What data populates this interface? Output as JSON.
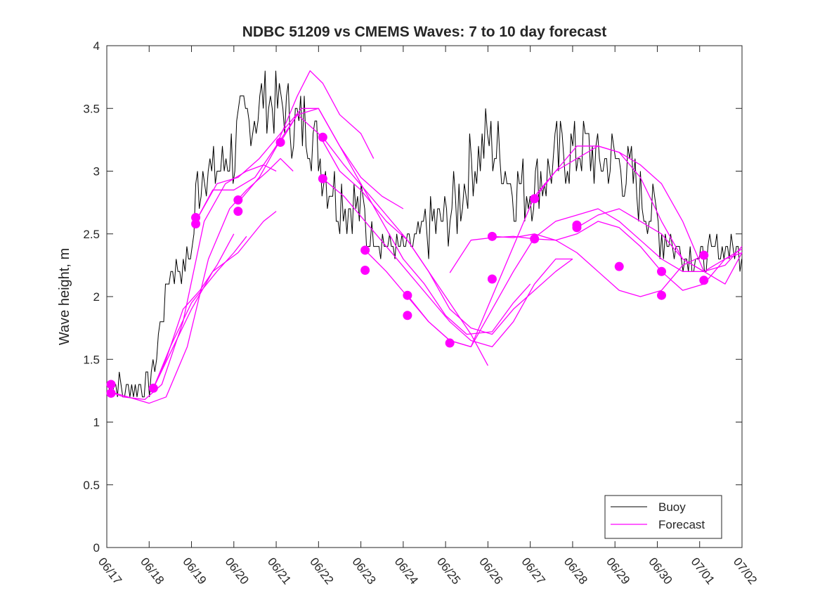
{
  "chart_data": {
    "type": "line",
    "title": "NDBC 51209 vs CMEMS Waves: 7 to 10 day forecast",
    "xlabel": "",
    "ylabel": "Wave height, m",
    "xlim": [
      "06/17",
      "07/02"
    ],
    "ylim": [
      0,
      4
    ],
    "x_ticks": [
      "06/17",
      "06/18",
      "06/19",
      "06/20",
      "06/21",
      "06/22",
      "06/23",
      "06/24",
      "06/25",
      "06/26",
      "06/27",
      "06/28",
      "06/29",
      "06/30",
      "07/01",
      "07/02"
    ],
    "y_ticks": [
      "0",
      "0.5",
      "1",
      "1.5",
      "2",
      "2.5",
      "3",
      "3.5",
      "4"
    ],
    "x_unit": "days since 06/17",
    "grid": false,
    "legend": {
      "position": "bottom-right",
      "entries": [
        "Buoy",
        "Forecast"
      ]
    },
    "colors": {
      "buoy": "#000000",
      "forecast": "#ff00ff",
      "axes": "#262626"
    },
    "series": [
      {
        "name": "Buoy",
        "style": "line",
        "x": [
          0.0,
          0.5,
          1.0,
          1.15,
          1.3,
          1.5,
          1.8,
          2.0,
          2.15,
          2.3,
          2.5,
          2.7,
          3.0,
          3.2,
          3.5,
          3.7,
          4.0,
          4.2,
          4.5,
          4.7,
          5.0,
          5.2,
          5.4,
          5.7,
          6.0,
          6.2,
          6.5,
          6.8,
          7.0,
          7.3,
          7.6,
          8.0,
          8.3,
          8.6,
          9.0,
          9.3,
          9.6,
          10.0,
          10.3,
          10.6,
          11.0,
          11.3,
          11.6,
          12.0,
          12.3,
          12.6,
          13.0,
          13.3,
          13.6,
          14.0,
          14.3,
          14.6,
          15.0
        ],
        "y": [
          1.3,
          1.25,
          1.3,
          1.5,
          1.85,
          2.2,
          2.2,
          2.35,
          2.9,
          3.1,
          2.95,
          3.05,
          3.15,
          3.35,
          3.45,
          3.6,
          3.55,
          3.5,
          3.35,
          3.4,
          3.2,
          2.95,
          2.85,
          2.75,
          2.7,
          2.5,
          2.45,
          2.4,
          2.4,
          2.45,
          2.55,
          2.6,
          2.75,
          3.05,
          3.25,
          3.1,
          2.9,
          2.85,
          2.95,
          3.1,
          3.15,
          3.2,
          3.05,
          3.1,
          3.0,
          2.8,
          2.6,
          2.45,
          2.35,
          2.3,
          2.35,
          2.4,
          2.35
        ]
      },
      {
        "name": "Forecast",
        "x": [
          0.0,
          0.4,
          0.9,
          1.3,
          1.8,
          2.3,
          2.8,
          3.3,
          3.7,
          4.0
        ],
        "y": [
          1.25,
          1.2,
          1.18,
          1.3,
          1.8,
          2.6,
          2.9,
          3.0,
          3.05,
          3.0
        ]
      },
      {
        "name": "",
        "x": [
          1.1,
          1.5,
          2.0,
          2.6,
          3.0,
          3.3
        ],
        "y": [
          1.27,
          1.6,
          1.95,
          2.2,
          2.35,
          2.48
        ]
      },
      {
        "name": "",
        "x": [
          1.1,
          1.5,
          2.0,
          2.5,
          3.1,
          3.7,
          4.0
        ],
        "y": [
          1.27,
          1.55,
          1.9,
          2.2,
          2.35,
          2.6,
          2.68
        ]
      },
      {
        "name": "",
        "x": [
          1.1,
          1.4,
          1.8,
          2.2,
          2.6,
          3.0
        ],
        "y": [
          1.27,
          1.5,
          1.9,
          2.05,
          2.25,
          2.5
        ]
      },
      {
        "name": "",
        "x": [
          0.0,
          0.5,
          1.0,
          1.4,
          1.9,
          2.4,
          2.9,
          3.3,
          3.8,
          4.1,
          4.4
        ],
        "y": [
          1.25,
          1.2,
          1.15,
          1.2,
          1.6,
          2.3,
          2.7,
          2.85,
          3.0,
          3.1,
          3.0
        ]
      },
      {
        "name": "",
        "x": [
          2.1,
          2.5,
          3.0,
          3.5,
          4.0,
          4.5,
          4.8,
          5.1,
          5.5,
          6.0,
          6.3
        ],
        "y": [
          2.6,
          2.85,
          2.85,
          2.95,
          3.2,
          3.6,
          3.8,
          3.7,
          3.45,
          3.3,
          3.1
        ]
      },
      {
        "name": "",
        "x": [
          2.1,
          2.6,
          3.1,
          3.6,
          4.1,
          4.6,
          5.0,
          5.5,
          6.0,
          6.5,
          7.0
        ],
        "y": [
          2.6,
          2.9,
          2.95,
          3.1,
          3.3,
          3.5,
          3.5,
          3.2,
          2.95,
          2.8,
          2.7
        ]
      },
      {
        "name": "",
        "x": [
          3.1,
          3.6,
          4.1,
          4.5,
          5.0,
          5.5,
          6.0,
          6.6,
          7.1,
          7.6,
          8.1,
          8.6,
          9.0
        ],
        "y": [
          2.75,
          2.95,
          3.25,
          3.45,
          3.3,
          3.0,
          2.85,
          2.6,
          2.45,
          2.2,
          1.95,
          1.7,
          1.45
        ]
      },
      {
        "name": "",
        "x": [
          4.1,
          4.5,
          5.0,
          5.5,
          6.0,
          6.5,
          7.0,
          7.5,
          8.0,
          8.5,
          9.1,
          9.6,
          10.0
        ],
        "y": [
          3.23,
          3.45,
          3.5,
          3.2,
          2.9,
          2.6,
          2.3,
          2.1,
          1.85,
          1.7,
          1.72,
          1.95,
          2.1
        ]
      },
      {
        "name": "",
        "x": [
          5.1,
          5.6,
          6.1,
          6.6,
          7.1,
          7.6,
          8.1,
          8.6,
          9.1,
          9.6,
          10.1,
          10.6,
          11.0
        ],
        "y": [
          3.27,
          3.05,
          2.85,
          2.65,
          2.45,
          2.2,
          1.9,
          1.75,
          1.7,
          1.9,
          2.05,
          2.2,
          2.3
        ]
      },
      {
        "name": "",
        "x": [
          5.1,
          5.6,
          6.1,
          6.6,
          7.1,
          7.6,
          8.1,
          8.6,
          9.1,
          9.6,
          10.1,
          10.6,
          11.0
        ],
        "y": [
          2.94,
          2.8,
          2.6,
          2.4,
          2.2,
          2.0,
          1.8,
          1.65,
          1.6,
          1.8,
          2.1,
          2.3,
          2.3
        ]
      },
      {
        "name": "",
        "x": [
          6.1,
          6.6,
          7.1,
          7.6,
          8.1,
          8.6,
          9.1,
          9.6,
          10.1,
          10.6,
          11.1,
          11.6,
          12.1,
          12.6,
          13.1,
          13.6,
          14.1
        ],
        "y": [
          2.37,
          2.2,
          2.0,
          1.8,
          1.65,
          1.6,
          2.0,
          2.4,
          2.8,
          3.0,
          3.1,
          3.2,
          3.15,
          2.95,
          2.6,
          2.3,
          2.2
        ]
      },
      {
        "name": "",
        "x": [
          7.1,
          7.6,
          8.1,
          8.6,
          9.1,
          9.6,
          10.1,
          10.6,
          11.1,
          11.6,
          12.1,
          12.6,
          13.1,
          13.6,
          14.1,
          14.6,
          15.0
        ],
        "y": [
          2.01,
          1.8,
          1.65,
          1.6,
          1.9,
          2.2,
          2.47,
          2.6,
          2.65,
          2.7,
          2.6,
          2.45,
          2.3,
          2.2,
          2.2,
          2.3,
          2.35
        ]
      },
      {
        "name": "",
        "x": [
          8.1,
          8.6,
          9.1,
          9.6,
          10.1,
          10.6,
          11.1,
          11.6,
          12.1,
          12.6,
          13.1,
          13.6,
          14.1,
          14.6,
          15.0
        ],
        "y": [
          2.19,
          2.45,
          2.47,
          2.48,
          2.46,
          2.45,
          2.5,
          2.6,
          2.55,
          2.4,
          2.2,
          2.05,
          2.1,
          2.3,
          2.38
        ]
      },
      {
        "name": "",
        "x": [
          9.1,
          9.6,
          10.1,
          10.6,
          11.1,
          11.6,
          12.1,
          12.6,
          13.1,
          13.6,
          14.1
        ],
        "y": [
          2.48,
          2.47,
          2.5,
          2.45,
          2.35,
          2.2,
          2.05,
          2.0,
          2.05,
          2.25,
          2.33
        ]
      },
      {
        "name": "",
        "x": [
          10.1,
          10.6,
          11.1,
          11.6,
          12.1,
          12.6,
          13.1,
          13.6,
          14.1,
          14.6,
          15.0
        ],
        "y": [
          2.78,
          3.0,
          3.2,
          3.2,
          3.15,
          3.05,
          2.9,
          2.6,
          2.2,
          2.1,
          2.35
        ]
      },
      {
        "name": "",
        "x": [
          11.1,
          11.6,
          12.1,
          12.6,
          13.1,
          13.6,
          14.1,
          14.6,
          15.0
        ],
        "y": [
          2.55,
          2.65,
          2.7,
          2.6,
          2.5,
          2.3,
          2.2,
          2.25,
          2.4
        ]
      }
    ],
    "initial_points": {
      "x": [
        0.1,
        0.1,
        1.1,
        2.1,
        2.1,
        3.1,
        3.1,
        4.1,
        5.1,
        5.1,
        6.1,
        6.1,
        7.1,
        7.1,
        8.1,
        9.1,
        9.1,
        10.1,
        10.1,
        11.1,
        11.1,
        12.1,
        13.1,
        13.1,
        14.1,
        14.1
      ],
      "y": [
        1.3,
        1.23,
        1.27,
        2.63,
        2.58,
        2.77,
        2.68,
        3.23,
        3.27,
        2.94,
        2.37,
        2.21,
        2.01,
        1.85,
        1.63,
        2.48,
        2.14,
        2.78,
        2.46,
        2.57,
        2.55,
        2.24,
        2.2,
        2.01,
        2.33,
        2.13
      ]
    }
  }
}
